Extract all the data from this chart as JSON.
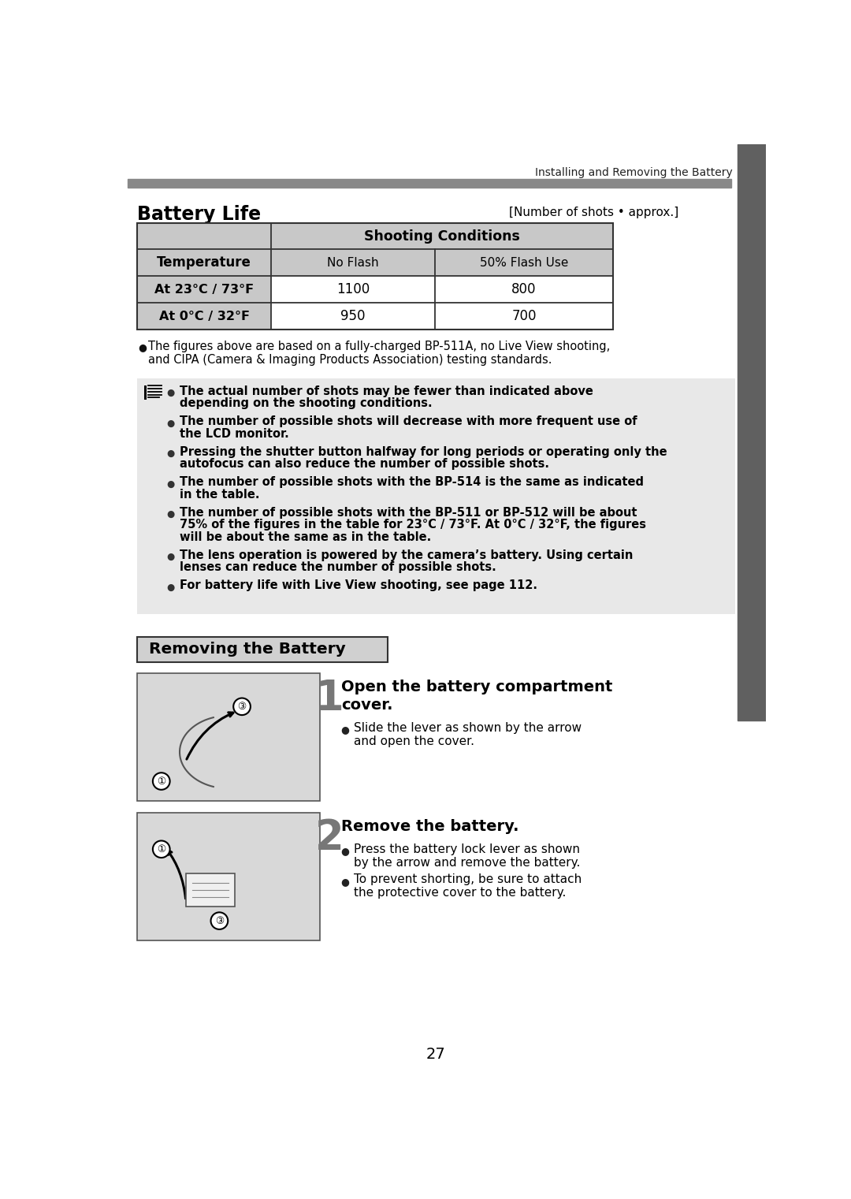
{
  "page_header": "Installing and Removing the Battery",
  "header_bar_color": "#888888",
  "page_number": "27",
  "battery_life_title": "Battery Life",
  "battery_life_subtitle": "[Number of shots • approx.]",
  "table_header_bg": "#c8c8c8",
  "table_col_header": "Shooting Conditions",
  "table_temp_header": "Temperature",
  "table_subcols": [
    "No Flash",
    "50% Flash Use"
  ],
  "table_rows": [
    [
      "At 23°C / 73°F",
      "1100",
      "800"
    ],
    [
      "At 0°C / 32°F",
      "950",
      "700"
    ]
  ],
  "bullet_note_line1": "The figures above are based on a fully-charged BP-511A, no Live View shooting,",
  "bullet_note_line2": "and CIPA (Camera & Imaging Products Association) testing standards.",
  "info_box_color": "#e8e8e8",
  "info_bullet_lines": [
    [
      "The actual number of shots may be fewer than indicated above",
      "depending on the shooting conditions."
    ],
    [
      "The number of possible shots will decrease with more frequent use of",
      "the LCD monitor."
    ],
    [
      "Pressing the shutter button halfway for long periods or operating only the",
      "autofocus can also reduce the number of possible shots."
    ],
    [
      "The number of possible shots with the BP-514 is the same as indicated",
      "in the table."
    ],
    [
      "The number of possible shots with the BP-511 or BP-512 will be about",
      "75% of the figures in the table for 23°C / 73°F. At 0°C / 32°F, the figures",
      "will be about the same as in the table."
    ],
    [
      "The lens operation is powered by the camera’s battery. Using certain",
      "lenses can reduce the number of possible shots."
    ],
    [
      "For battery life with Live View shooting, see page 112."
    ]
  ],
  "section_title": "Removing the Battery",
  "section_title_bg": "#d0d0d0",
  "step1_number": "1",
  "step1_title_line1": "Open the battery compartment",
  "step1_title_line2": "cover.",
  "step1_bullet": [
    "Slide the lever as shown by the arrow",
    "and open the cover."
  ],
  "step2_number": "2",
  "step2_title": "Remove the battery.",
  "step2_bullet1": [
    "Press the battery lock lever as shown",
    "by the arrow and remove the battery."
  ],
  "step2_bullet2": [
    "To prevent shorting, be sure to attach",
    "the protective cover to the battery."
  ],
  "sidebar_color": "#606060",
  "bg_color": "#ffffff",
  "text_color": "#000000"
}
